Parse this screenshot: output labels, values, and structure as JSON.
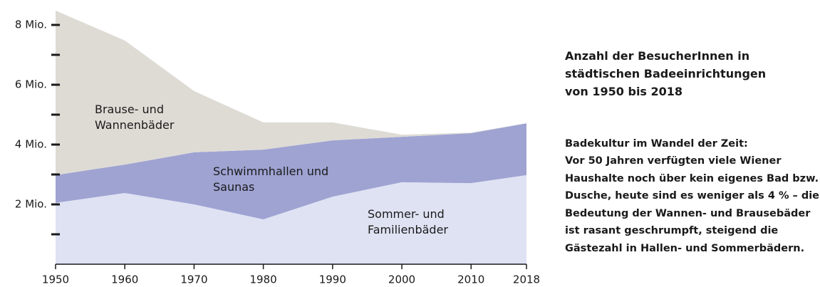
{
  "chart_data": {
    "type": "stacked_area",
    "title": "Anzahl der BesucherInnen in städtischen Badeeinrichtungen von 1950 bis 2018",
    "subtitle": "Badekultur im Wandel der Zeit:",
    "description": "Vor 50 Jahren verfügten viele Wiener Haushalte noch über kein eigenes Bad bzw. Dusche, heute sind es weniger als 4 % – die Bedeutung der Wannen- und Brausebäder ist rasant geschrumpft, steigend die Gästezahl in Hallen- und Sommerbädern.",
    "x": [
      1950,
      1960,
      1970,
      1980,
      1990,
      2000,
      2010,
      2018
    ],
    "xlim": [
      1950,
      2018
    ],
    "xticks": [
      1950,
      1960,
      1970,
      1980,
      1990,
      2000,
      2010,
      2018
    ],
    "ylim": [
      0,
      8.5
    ],
    "yticks": [
      {
        "value": 2,
        "label": "2 Mio."
      },
      {
        "value": 4,
        "label": "4 Mio."
      },
      {
        "value": 6,
        "label": "6 Mio."
      },
      {
        "value": 8,
        "label": "8 Mio."
      }
    ],
    "yminorticks": [
      1,
      3,
      5,
      7
    ],
    "series": [
      {
        "name": "Sommer- und Familienbäder",
        "color": "#dfe2f3",
        "values": [
          2.05,
          2.38,
          2.0,
          1.5,
          2.26,
          2.74,
          2.71,
          2.98
        ]
      },
      {
        "name": "Schwimmhallen und Saunas",
        "color": "#9ea3d2",
        "values": [
          0.93,
          0.95,
          1.74,
          2.33,
          1.88,
          1.52,
          1.67,
          1.73
        ]
      },
      {
        "name": "Brause- und Wannenbäder",
        "color": "#dedbd5",
        "values": [
          5.5,
          4.15,
          2.05,
          0.91,
          0.6,
          0.07,
          0.02,
          0.0
        ]
      }
    ]
  }
}
